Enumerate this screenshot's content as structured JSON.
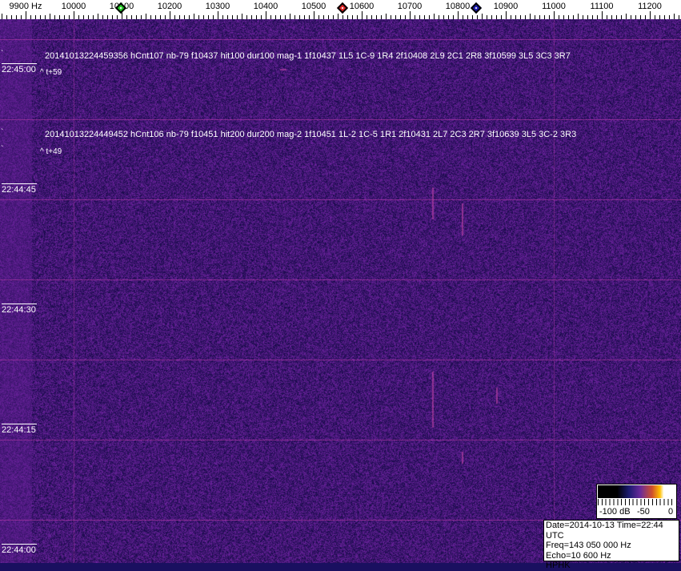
{
  "frequency_scale": {
    "unit_label": "9900 Hz",
    "labels": [
      "10000",
      "10100",
      "10200",
      "10300",
      "10400",
      "10500",
      "10600",
      "10700",
      "10800",
      "10900",
      "11000",
      "11100",
      "11200"
    ],
    "markers": [
      {
        "name": "green-marker",
        "color": "#22cc22",
        "freq": 10098
      },
      {
        "name": "red-marker",
        "color": "#dd2222",
        "freq": 10560
      },
      {
        "name": "blue-marker",
        "color": "#1a1aaa",
        "freq": 10838
      }
    ]
  },
  "time_labels": [
    "22:45:00",
    "22:44:45",
    "22:44:30",
    "22:44:15",
    "22:44:00"
  ],
  "detections": [
    {
      "text": "20141013224459356 hCnt107 nb-79 f10437 hit100 dur100 mag-1 1f10437 1L5 1C-9 1R4 2f10408 2L9 2C1 2R8 3f10599 3L5 3C3 3R7",
      "offset": "^ t+59"
    },
    {
      "text": "20141013224449452 hCnt106 nb-79 f10451 hit200 dur200 mag-2 1f10451 1L-2 1C-5 1R1 2f10431 2L7 2C3 2R7 3f10639 3L5 3C-2 3R3",
      "offset": "^ t+49"
    }
  ],
  "color_legend": {
    "labels": [
      "-100 dB",
      "-50",
      "0"
    ]
  },
  "info": {
    "date_time": "Date=2014-10-13 Time=22:44 UTC",
    "freq": "Freq=143 050 000 Hz",
    "echo": "Echo=10 600 Hz",
    "station": "HPHK"
  },
  "colors": {
    "background": "#1a1060",
    "grid": "#be3caa",
    "text": "#ffffff"
  }
}
